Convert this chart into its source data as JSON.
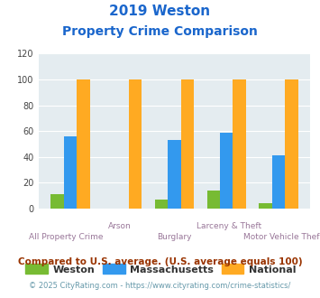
{
  "title_line1": "2019 Weston",
  "title_line2": "Property Crime Comparison",
  "categories": [
    "All Property Crime",
    "Arson",
    "Burglary",
    "Larceny & Theft",
    "Motor Vehicle Theft"
  ],
  "weston": [
    11,
    0,
    7,
    14,
    4
  ],
  "massachusetts": [
    56,
    0,
    53,
    59,
    41
  ],
  "national": [
    100,
    100,
    100,
    100,
    100
  ],
  "weston_color": "#77bb33",
  "mass_color": "#3399ee",
  "national_color": "#ffaa22",
  "ylim": [
    0,
    120
  ],
  "yticks": [
    0,
    20,
    40,
    60,
    80,
    100,
    120
  ],
  "xlabel_top": [
    "",
    "Arson",
    "",
    "Larceny & Theft",
    ""
  ],
  "xlabel_bottom": [
    "All Property Crime",
    "",
    "Burglary",
    "",
    "Motor Vehicle Theft"
  ],
  "legend_labels": [
    "Weston",
    "Massachusetts",
    "National"
  ],
  "footnote1": "Compared to U.S. average. (U.S. average equals 100)",
  "footnote2": "© 2025 CityRating.com - https://www.cityrating.com/crime-statistics/",
  "bg_color": "#e4ecf0",
  "title_color": "#1a66cc",
  "footnote1_color": "#993300",
  "footnote2_color": "#6699aa",
  "xlabel_color": "#997799"
}
